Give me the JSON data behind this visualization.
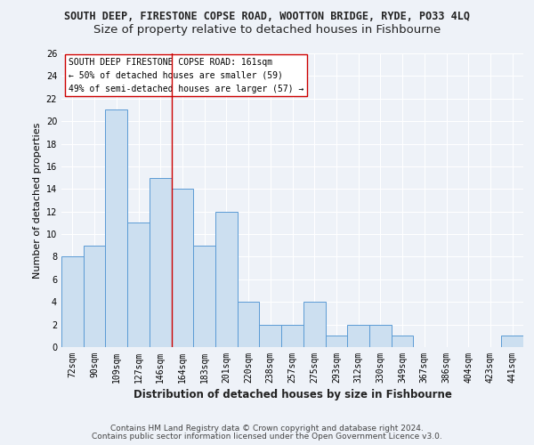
{
  "title": "SOUTH DEEP, FIRESTONE COPSE ROAD, WOOTTON BRIDGE, RYDE, PO33 4LQ",
  "subtitle": "Size of property relative to detached houses in Fishbourne",
  "xlabel": "Distribution of detached houses by size in Fishbourne",
  "ylabel": "Number of detached properties",
  "categories": [
    "72sqm",
    "90sqm",
    "109sqm",
    "127sqm",
    "146sqm",
    "164sqm",
    "183sqm",
    "201sqm",
    "220sqm",
    "238sqm",
    "257sqm",
    "275sqm",
    "293sqm",
    "312sqm",
    "330sqm",
    "349sqm",
    "367sqm",
    "386sqm",
    "404sqm",
    "423sqm",
    "441sqm"
  ],
  "values": [
    8,
    9,
    21,
    11,
    15,
    14,
    9,
    12,
    4,
    2,
    2,
    4,
    1,
    2,
    2,
    1,
    0,
    0,
    0,
    0,
    1
  ],
  "bar_color": "#ccdff0",
  "bar_edge_color": "#5b9bd5",
  "vline_x_index": 4.5,
  "vline_color": "#cc0000",
  "annotation_text": "SOUTH DEEP FIRESTONE COPSE ROAD: 161sqm\n← 50% of detached houses are smaller (59)\n49% of semi-detached houses are larger (57) →",
  "ylim": [
    0,
    26
  ],
  "yticks": [
    0,
    2,
    4,
    6,
    8,
    10,
    12,
    14,
    16,
    18,
    20,
    22,
    24,
    26
  ],
  "background_color": "#eef2f8",
  "plot_bg_color": "#eef2f8",
  "grid_color": "#ffffff",
  "footer_line1": "Contains HM Land Registry data © Crown copyright and database right 2024.",
  "footer_line2": "Contains public sector information licensed under the Open Government Licence v3.0.",
  "title_fontsize": 8.5,
  "subtitle_fontsize": 9.5,
  "xlabel_fontsize": 8.5,
  "ylabel_fontsize": 8,
  "tick_fontsize": 7,
  "annotation_fontsize": 7,
  "footer_fontsize": 6.5
}
